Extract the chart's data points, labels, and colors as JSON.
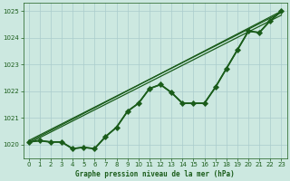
{
  "title": "Graphe pression niveau de la mer (hPa)",
  "bg_color": "#cce8e0",
  "grid_color": "#aacccc",
  "line_color": "#1a5c1a",
  "xlim": [
    -0.5,
    23.5
  ],
  "ylim": [
    1019.5,
    1025.3
  ],
  "yticks": [
    1020,
    1021,
    1022,
    1023,
    1024,
    1025
  ],
  "xticks": [
    0,
    1,
    2,
    3,
    4,
    5,
    6,
    7,
    8,
    9,
    10,
    11,
    12,
    13,
    14,
    15,
    16,
    17,
    18,
    19,
    20,
    21,
    22,
    23
  ],
  "curved_x": [
    0,
    1,
    2,
    3,
    4,
    5,
    6,
    7,
    8,
    9,
    10,
    11,
    12,
    13,
    14,
    15,
    16,
    17,
    18,
    19,
    20,
    21,
    22,
    23
  ],
  "curved_y": [
    1020.1,
    1020.15,
    1020.1,
    1020.1,
    1019.85,
    1019.9,
    1019.85,
    1020.3,
    1020.65,
    1021.25,
    1021.55,
    1022.1,
    1022.25,
    1021.95,
    1021.55,
    1021.55,
    1021.55,
    1022.15,
    1022.85,
    1023.55,
    1024.25,
    1024.2,
    1024.65,
    1025.0
  ],
  "trend1_x": [
    0,
    23
  ],
  "trend1_y": [
    1020.1,
    1025.0
  ],
  "trend2_x": [
    0,
    23
  ],
  "trend2_y": [
    1020.05,
    1024.85
  ],
  "trend3_x": [
    0,
    23
  ],
  "trend3_y": [
    1020.15,
    1024.95
  ],
  "diamond_x": [
    0,
    1,
    2,
    3,
    4,
    5,
    6,
    7,
    8,
    9,
    10,
    11,
    12,
    13,
    14,
    15,
    16,
    17,
    18,
    19,
    20,
    21,
    22,
    23
  ],
  "diamond_y": [
    1020.1,
    1020.15,
    1020.1,
    1020.1,
    1019.85,
    1019.9,
    1019.85,
    1020.3,
    1020.65,
    1021.25,
    1021.55,
    1022.1,
    1022.25,
    1021.95,
    1021.55,
    1021.55,
    1021.55,
    1022.15,
    1022.85,
    1023.55,
    1024.25,
    1024.2,
    1024.65,
    1025.0
  ],
  "figwidth": 3.2,
  "figheight": 2.0,
  "dpi": 100
}
